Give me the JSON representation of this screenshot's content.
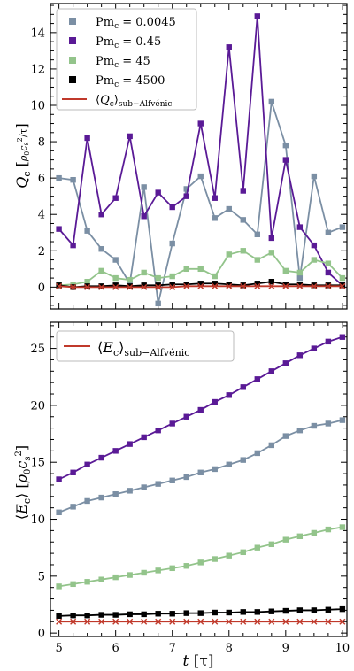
{
  "chart_data": [
    {
      "type": "line",
      "ylabel": "Q_c [ρ0 c_s^2 / τ]",
      "ylim": [
        -1.2,
        15.6
      ],
      "xlim": [
        4.85,
        10.08
      ],
      "yticks": [
        "0",
        "2",
        "4",
        "6",
        "8",
        "10",
        "12",
        "14"
      ],
      "x": [
        5.0,
        5.25,
        5.5,
        5.75,
        6.0,
        6.25,
        6.5,
        6.75,
        7.0,
        7.25,
        7.5,
        7.75,
        8.0,
        8.25,
        8.5,
        8.75,
        9.0,
        9.25,
        9.5,
        9.75,
        10.0
      ],
      "legend_position": "top-left",
      "series": [
        {
          "name": "Pm_c = 0.0045",
          "color": "#7b8fa4",
          "values": [
            6.0,
            5.9,
            3.1,
            2.1,
            1.5,
            0.2,
            5.5,
            -0.9,
            2.4,
            5.4,
            6.1,
            3.8,
            4.3,
            3.7,
            2.9,
            10.2,
            7.8,
            0.5,
            6.1,
            3.0,
            3.3
          ]
        },
        {
          "name": "Pm_c = 0.45",
          "color": "#5a1a96",
          "values": [
            3.2,
            2.3,
            8.2,
            4.0,
            4.9,
            8.3,
            3.9,
            5.2,
            4.4,
            5.0,
            9.0,
            4.9,
            13.2,
            5.3,
            14.9,
            2.7,
            7.0,
            3.3,
            2.3,
            0.8,
            0.1
          ]
        },
        {
          "name": "Pm_c = 45",
          "color": "#93c48b",
          "values": [
            0.1,
            0.15,
            0.3,
            0.9,
            0.5,
            0.4,
            0.8,
            0.5,
            0.6,
            1.0,
            1.0,
            0.6,
            1.8,
            2.0,
            1.5,
            1.9,
            0.9,
            0.8,
            1.5,
            1.3,
            0.5
          ]
        },
        {
          "name": "Pm_c = 4500",
          "color": "#000000",
          "values": [
            0.1,
            0.0,
            0.05,
            0.05,
            0.1,
            0.05,
            0.1,
            0.1,
            0.15,
            0.15,
            0.2,
            0.2,
            0.15,
            0.1,
            0.2,
            0.3,
            0.15,
            0.15,
            0.1,
            0.1,
            0.1
          ]
        },
        {
          "name": "⟨Q_c⟩ sub-Alfvénic",
          "color": "#c0392b",
          "marker": "x",
          "values": [
            0.05,
            0.0,
            0.0,
            0.0,
            0.0,
            0.0,
            0.0,
            0.0,
            0.0,
            0.05,
            0.05,
            0.05,
            0.05,
            0.05,
            0.05,
            0.05,
            0.05,
            0.05,
            0.05,
            0.05,
            0.05
          ]
        }
      ]
    },
    {
      "type": "line",
      "xlabel": "t [τ]",
      "ylabel": "⟨E_c⟩ [ρ0 c_s^2]",
      "ylim": [
        -0.3,
        27.3
      ],
      "xlim": [
        4.85,
        10.08
      ],
      "yticks": [
        "0",
        "5",
        "10",
        "15",
        "20",
        "25"
      ],
      "xticks": [
        "5",
        "6",
        "7",
        "8",
        "9",
        "10"
      ],
      "x": [
        5.0,
        5.25,
        5.5,
        5.75,
        6.0,
        6.25,
        6.5,
        6.75,
        7.0,
        7.25,
        7.5,
        7.75,
        8.0,
        8.25,
        8.5,
        8.75,
        9.0,
        9.25,
        9.5,
        9.75,
        10.0
      ],
      "legend_position": "top-left",
      "series": [
        {
          "color": "#5a1a96",
          "values": [
            13.5,
            14.1,
            14.8,
            15.4,
            16.0,
            16.6,
            17.2,
            17.8,
            18.4,
            19.0,
            19.6,
            20.3,
            20.9,
            21.6,
            22.3,
            23.0,
            23.7,
            24.4,
            25.0,
            25.6,
            26.0
          ]
        },
        {
          "color": "#7b8fa4",
          "values": [
            10.6,
            11.1,
            11.6,
            11.9,
            12.2,
            12.5,
            12.8,
            13.1,
            13.4,
            13.7,
            14.1,
            14.4,
            14.8,
            15.2,
            15.8,
            16.5,
            17.3,
            17.8,
            18.2,
            18.4,
            18.7
          ]
        },
        {
          "color": "#93c48b",
          "values": [
            4.1,
            4.3,
            4.5,
            4.7,
            4.9,
            5.1,
            5.3,
            5.5,
            5.7,
            5.9,
            6.2,
            6.5,
            6.8,
            7.1,
            7.5,
            7.8,
            8.2,
            8.5,
            8.8,
            9.1,
            9.3
          ]
        },
        {
          "color": "#000000",
          "values": [
            1.5,
            1.55,
            1.55,
            1.6,
            1.6,
            1.65,
            1.65,
            1.7,
            1.7,
            1.75,
            1.75,
            1.8,
            1.8,
            1.85,
            1.85,
            1.9,
            1.95,
            2.0,
            2.0,
            2.05,
            2.1
          ]
        },
        {
          "name": "⟨E_c⟩ sub-Alfvénic",
          "color": "#c0392b",
          "marker": "x",
          "values": [
            1.0,
            1.0,
            1.0,
            1.0,
            1.0,
            1.0,
            1.0,
            1.0,
            1.0,
            1.0,
            1.0,
            1.0,
            1.0,
            1.0,
            1.0,
            1.0,
            1.0,
            1.0,
            1.0,
            1.0,
            1.0
          ]
        }
      ]
    }
  ]
}
